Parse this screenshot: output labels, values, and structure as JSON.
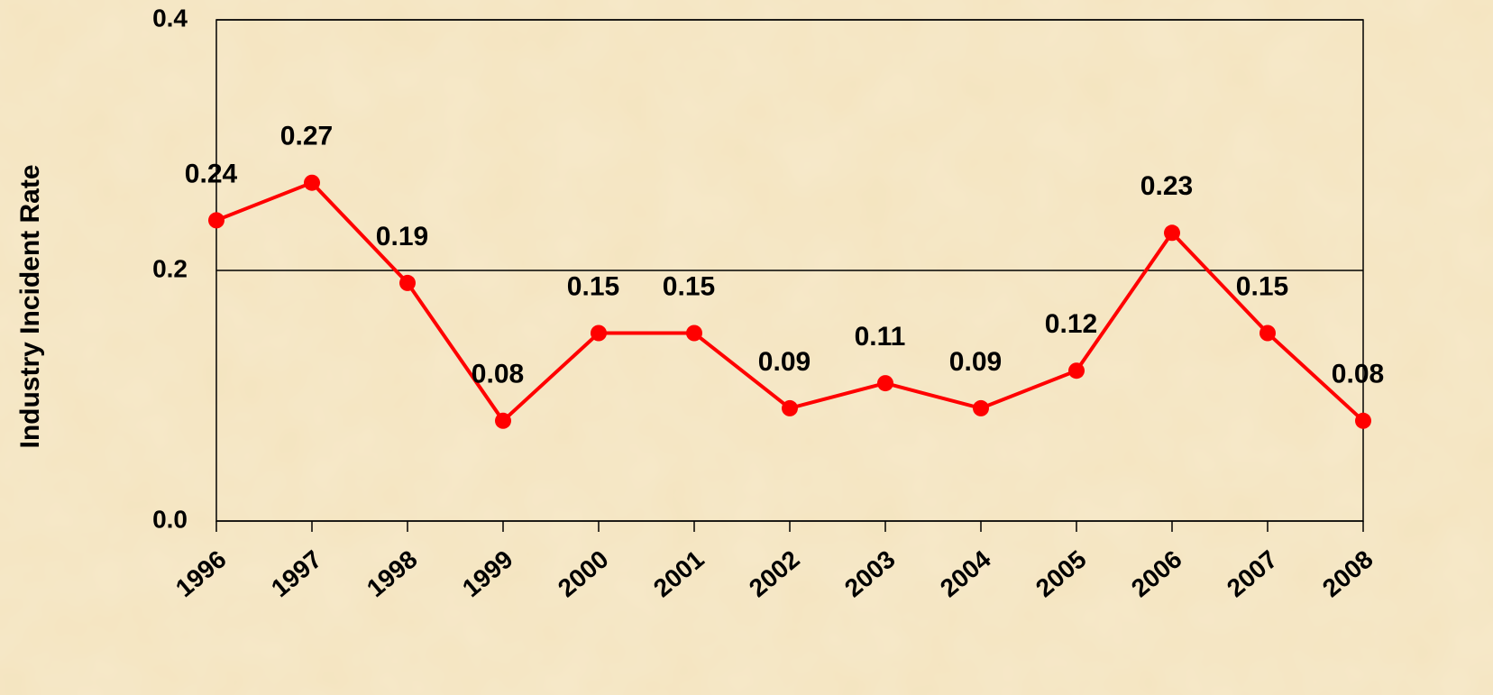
{
  "chart_data": {
    "type": "line",
    "y_label": "Industry Incident Rate",
    "categories": [
      "1996",
      "1997",
      "1998",
      "1999",
      "2000",
      "2001",
      "2002",
      "2003",
      "2004",
      "2005",
      "2006",
      "2007",
      "2008"
    ],
    "series": [
      {
        "name": "Industry Incident Rate",
        "color": "#ff0000",
        "values": [
          0.24,
          0.27,
          0.19,
          0.08,
          0.15,
          0.15,
          0.09,
          0.11,
          0.09,
          0.12,
          0.23,
          0.15,
          0.08
        ]
      }
    ],
    "ylim": [
      0,
      0.4
    ],
    "yticks": [
      {
        "value": 0,
        "label": "0.0"
      },
      0.2,
      0.4
    ],
    "grid": true
  }
}
